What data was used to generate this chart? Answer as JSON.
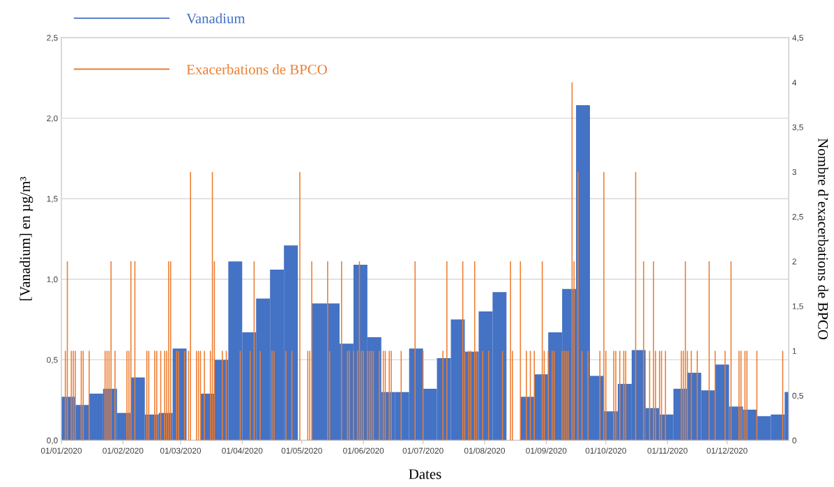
{
  "chart_data": {
    "type": "bar",
    "xlabel": "Dates",
    "ylabel": "[Vanadium] en µg/m³",
    "y2label": "Nombre d’exacerbations de BPCO",
    "xlim": [
      "2020-01-01",
      "2021-01-01"
    ],
    "xticks": [
      {
        "value": "2020-01-01",
        "label": "01/01/2020"
      },
      {
        "value": "2020-02-01",
        "label": "01/02/2020"
      },
      {
        "value": "2020-03-01",
        "label": "01/03/2020"
      },
      {
        "value": "2020-04-01",
        "label": "01/04/2020"
      },
      {
        "value": "2020-05-01",
        "label": "01/05/2020"
      },
      {
        "value": "2020-06-01",
        "label": "01/06/2020"
      },
      {
        "value": "2020-07-01",
        "label": "01/07/2020"
      },
      {
        "value": "2020-08-01",
        "label": "01/08/2020"
      },
      {
        "value": "2020-09-01",
        "label": "01/09/2020"
      },
      {
        "value": "2020-10-01",
        "label": "01/10/2020"
      },
      {
        "value": "2020-11-01",
        "label": "01/11/2020"
      },
      {
        "value": "2020-12-01",
        "label": "01/12/2020"
      }
    ],
    "ylim": [
      0,
      2.5
    ],
    "yticks": [
      {
        "value": 0,
        "label": "0,0"
      },
      {
        "value": 0.5,
        "label": "0,5"
      },
      {
        "value": 1,
        "label": "1,0"
      },
      {
        "value": 1.5,
        "label": "1,5"
      },
      {
        "value": 2,
        "label": "2,0"
      },
      {
        "value": 2.5,
        "label": "2,5"
      }
    ],
    "y2lim": [
      0,
      4.5
    ],
    "y2ticks": [
      0,
      {
        "value": 0.5,
        "label": "0,5"
      },
      1,
      {
        "value": 1.5,
        "label": "1,5"
      },
      2,
      {
        "value": 2.5,
        "label": "2,5"
      },
      3,
      {
        "value": 3.5,
        "label": "3,5"
      },
      4,
      {
        "value": 4.5,
        "label": "4,5"
      }
    ],
    "grid": "y",
    "legend": "top left",
    "series": [
      {
        "name": "Vanadium",
        "color": "#4472c4",
        "x": [
          "2020-01-01",
          "2020-01-08",
          "2020-01-15",
          "2020-01-22",
          "2020-01-29",
          "2020-02-05",
          "2020-02-12",
          "2020-02-19",
          "2020-02-26",
          "2020-03-04",
          "2020-03-11",
          "2020-03-18",
          "2020-03-25",
          "2020-04-01",
          "2020-04-08",
          "2020-04-15",
          "2020-04-22",
          "2020-04-29",
          "2020-05-06",
          "2020-05-13",
          "2020-05-20",
          "2020-05-27",
          "2020-06-03",
          "2020-06-10",
          "2020-06-17",
          "2020-06-24",
          "2020-07-01",
          "2020-07-08",
          "2020-07-15",
          "2020-07-22",
          "2020-07-29",
          "2020-08-05",
          "2020-08-12",
          "2020-08-19",
          "2020-08-26",
          "2020-09-02",
          "2020-09-09",
          "2020-09-16",
          "2020-09-23",
          "2020-09-30",
          "2020-10-07",
          "2020-10-14",
          "2020-10-21",
          "2020-10-28",
          "2020-11-04",
          "2020-11-11",
          "2020-11-18",
          "2020-11-25",
          "2020-12-02",
          "2020-12-09",
          "2020-12-16",
          "2020-12-23",
          "2020-12-30"
        ],
        "values": [
          0.27,
          0.22,
          0.29,
          0.32,
          0.17,
          0.39,
          0.16,
          0.17,
          0.57,
          null,
          0.29,
          0.5,
          1.11,
          0.67,
          0.88,
          1.06,
          1.21,
          null,
          0.85,
          0.85,
          0.6,
          1.09,
          0.64,
          0.3,
          0.3,
          0.57,
          0.32,
          0.51,
          0.75,
          0.55,
          0.8,
          0.92,
          null,
          0.27,
          0.41,
          0.67,
          0.94,
          2.08,
          0.4,
          0.18,
          0.35,
          0.56,
          0.2,
          0.16,
          0.32,
          0.42,
          0.31,
          0.47,
          0.21,
          0.19,
          0.15,
          0.16,
          0.3
        ]
      },
      {
        "name": "Exacerbations de BPCO",
        "color": "#ed7d31",
        "axis": "y2",
        "x": [
          "2020-01-03",
          "2020-01-04",
          "2020-01-06",
          "2020-01-07",
          "2020-01-08",
          "2020-01-11",
          "2020-01-12",
          "2020-01-15",
          "2020-01-23",
          "2020-01-24",
          "2020-01-25",
          "2020-01-26",
          "2020-01-28",
          "2020-02-03",
          "2020-02-04",
          "2020-02-05",
          "2020-02-07",
          "2020-02-13",
          "2020-02-14",
          "2020-02-17",
          "2020-02-18",
          "2020-02-20",
          "2020-02-22",
          "2020-02-23",
          "2020-02-24",
          "2020-02-25",
          "2020-02-28",
          "2020-02-29",
          "2020-03-03",
          "2020-03-05",
          "2020-03-06",
          "2020-03-09",
          "2020-03-10",
          "2020-03-11",
          "2020-03-13",
          "2020-03-16",
          "2020-03-17",
          "2020-03-18",
          "2020-03-22",
          "2020-03-24",
          "2020-03-31",
          "2020-04-05",
          "2020-04-07",
          "2020-04-10",
          "2020-04-16",
          "2020-04-17",
          "2020-04-23",
          "2020-04-26",
          "2020-04-30",
          "2020-05-04",
          "2020-05-05",
          "2020-05-06",
          "2020-05-14",
          "2020-05-15",
          "2020-05-21",
          "2020-05-24",
          "2020-05-25",
          "2020-05-27",
          "2020-05-29",
          "2020-05-30",
          "2020-05-31",
          "2020-06-01",
          "2020-06-03",
          "2020-06-04",
          "2020-06-05",
          "2020-06-06",
          "2020-06-09",
          "2020-06-11",
          "2020-06-12",
          "2020-06-14",
          "2020-06-15",
          "2020-06-20",
          "2020-06-27",
          "2020-07-01",
          "2020-07-11",
          "2020-07-13",
          "2020-07-21",
          "2020-07-22",
          "2020-07-24",
          "2020-07-25",
          "2020-07-27",
          "2020-07-28",
          "2020-07-31",
          "2020-08-03",
          "2020-08-10",
          "2020-08-14",
          "2020-08-15",
          "2020-08-19",
          "2020-08-22",
          "2020-08-24",
          "2020-08-26",
          "2020-08-30",
          "2020-08-31",
          "2020-09-02",
          "2020-09-04",
          "2020-09-05",
          "2020-09-09",
          "2020-09-10",
          "2020-09-11",
          "2020-09-12",
          "2020-09-14",
          "2020-09-15",
          "2020-09-17",
          "2020-09-19",
          "2020-09-22",
          "2020-09-28",
          "2020-09-30",
          "2020-10-01",
          "2020-10-05",
          "2020-10-06",
          "2020-10-08",
          "2020-10-10",
          "2020-10-11",
          "2020-10-16",
          "2020-10-20",
          "2020-10-23",
          "2020-10-25",
          "2020-10-26",
          "2020-10-28",
          "2020-10-29",
          "2020-10-31",
          "2020-11-08",
          "2020-11-09",
          "2020-11-10",
          "2020-11-11",
          "2020-11-13",
          "2020-11-16",
          "2020-11-22",
          "2020-11-25",
          "2020-11-30",
          "2020-12-03",
          "2020-12-07",
          "2020-12-08",
          "2020-12-10",
          "2020-12-11",
          "2020-12-16",
          "2020-12-29"
        ],
        "values": [
          1,
          2,
          1,
          1,
          1,
          1,
          1,
          1,
          1,
          1,
          1,
          2,
          1,
          1,
          1,
          2,
          2,
          1,
          1,
          1,
          1,
          1,
          1,
          1,
          2,
          2,
          1,
          1,
          1,
          1,
          3,
          1,
          1,
          1,
          1,
          1,
          3,
          2,
          1,
          1,
          1,
          1,
          2,
          1,
          1,
          1,
          1,
          1,
          3,
          1,
          1,
          2,
          2,
          1,
          2,
          1,
          1,
          1,
          1,
          2,
          1,
          1,
          1,
          1,
          1,
          1,
          1,
          1,
          1,
          1,
          1,
          1,
          2,
          1,
          1,
          2,
          2,
          1,
          1,
          1,
          2,
          1,
          1,
          1,
          1,
          2,
          1,
          2,
          1,
          1,
          1,
          2,
          1,
          1,
          1,
          1,
          1,
          1,
          1,
          1,
          4,
          2,
          3,
          1,
          1,
          1,
          3,
          1,
          1,
          1,
          1,
          1,
          1,
          3,
          2,
          1,
          2,
          1,
          1,
          1,
          1,
          1,
          1,
          2,
          1,
          1,
          1,
          2,
          1,
          1,
          2,
          1,
          1,
          1,
          1,
          1,
          1
        ]
      }
    ]
  }
}
